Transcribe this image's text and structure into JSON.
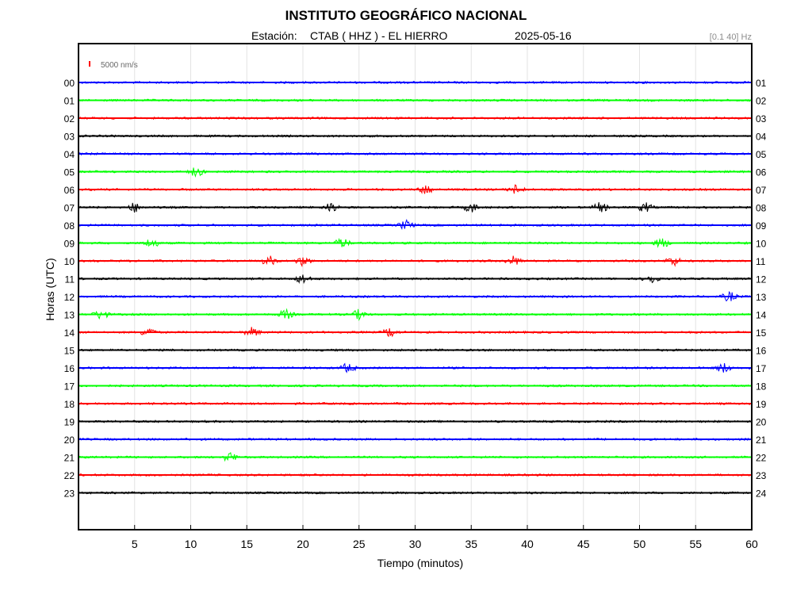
{
  "header": {
    "title": "INSTITUTO GEOGRÁFICO NACIONAL",
    "station_label": "Estación:",
    "station": "CTAB ( HHZ ) - EL HIERRO",
    "date": "2025-05-16",
    "filter": "[0.1 40] Hz"
  },
  "chart_data": {
    "type": "line",
    "title": "INSTITUTO GEOGRÁFICO NACIONAL",
    "xlabel": "Tiempo (minutos)",
    "ylabel": "Horas (UTC)",
    "xlim": [
      0,
      60
    ],
    "x_ticks": [
      5,
      10,
      15,
      20,
      25,
      30,
      35,
      40,
      45,
      50,
      55,
      60
    ],
    "scale_label": "5000 nm/s",
    "scale_color": "#ff0000",
    "grid": "vertical",
    "colors": [
      "#0000ff",
      "#00ff00",
      "#ff0000",
      "#000000"
    ],
    "rows": [
      {
        "left": "00",
        "right": "01",
        "color": "#0000ff",
        "events": []
      },
      {
        "left": "01",
        "right": "02",
        "color": "#00ff00",
        "events": []
      },
      {
        "left": "02",
        "right": "03",
        "color": "#ff0000",
        "events": []
      },
      {
        "left": "03",
        "right": "04",
        "color": "#000000",
        "events": []
      },
      {
        "left": "04",
        "right": "05",
        "color": "#0000ff",
        "events": []
      },
      {
        "left": "05",
        "right": "06",
        "color": "#00ff00",
        "events": [
          10.5
        ]
      },
      {
        "left": "06",
        "right": "07",
        "color": "#ff0000",
        "events": [
          31,
          39
        ]
      },
      {
        "left": "07",
        "right": "08",
        "color": "#000000",
        "events": [
          5,
          22.5,
          35,
          46.5,
          50.5
        ]
      },
      {
        "left": "08",
        "right": "09",
        "color": "#0000ff",
        "events": [
          29.2
        ]
      },
      {
        "left": "09",
        "right": "10",
        "color": "#00ff00",
        "events": [
          6.5,
          23.5,
          52
        ]
      },
      {
        "left": "10",
        "right": "11",
        "color": "#ff0000",
        "events": [
          17,
          20,
          38.8,
          53
        ]
      },
      {
        "left": "11",
        "right": "12",
        "color": "#000000",
        "events": [
          20,
          51
        ]
      },
      {
        "left": "12",
        "right": "13",
        "color": "#0000ff",
        "events": [
          58
        ]
      },
      {
        "left": "13",
        "right": "14",
        "color": "#00ff00",
        "events": [
          2,
          18.5,
          25
        ]
      },
      {
        "left": "14",
        "right": "15",
        "color": "#ff0000",
        "events": [
          6.2,
          15.5,
          27.8
        ]
      },
      {
        "left": "15",
        "right": "16",
        "color": "#000000",
        "events": []
      },
      {
        "left": "16",
        "right": "17",
        "color": "#0000ff",
        "events": [
          24,
          57.5
        ]
      },
      {
        "left": "17",
        "right": "18",
        "color": "#00ff00",
        "events": []
      },
      {
        "left": "18",
        "right": "19",
        "color": "#ff0000",
        "events": []
      },
      {
        "left": "19",
        "right": "20",
        "color": "#000000",
        "events": []
      },
      {
        "left": "20",
        "right": "21",
        "color": "#0000ff",
        "events": []
      },
      {
        "left": "21",
        "right": "22",
        "color": "#00ff00",
        "events": [
          13.5
        ]
      },
      {
        "left": "22",
        "right": "23",
        "color": "#ff0000",
        "events": []
      },
      {
        "left": "23",
        "right": "24",
        "color": "#000000",
        "events": []
      }
    ]
  }
}
